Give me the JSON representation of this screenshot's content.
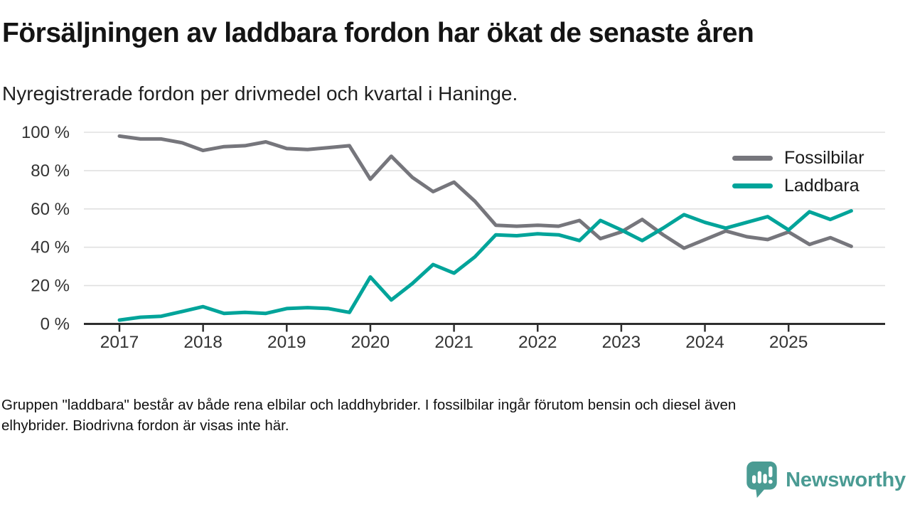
{
  "header": {
    "title": "Försäljningen av laddbara fordon har ökat de senaste åren",
    "subtitle": "Nyregistrerade fordon per drivmedel och kvartal i Haninge."
  },
  "chart_data": {
    "type": "line",
    "unit": "percent",
    "title": "Nyregistrerade fordon per drivmedel och kvartal i Haninge",
    "categories": [
      "2017 Q1",
      "2017 Q2",
      "2017 Q3",
      "2017 Q4",
      "2018 Q1",
      "2018 Q2",
      "2018 Q3",
      "2018 Q4",
      "2019 Q1",
      "2019 Q2",
      "2019 Q3",
      "2019 Q4",
      "2020 Q1",
      "2020 Q2",
      "2020 Q3",
      "2020 Q4",
      "2021 Q1",
      "2021 Q2",
      "2021 Q3",
      "2021 Q4",
      "2022 Q1",
      "2022 Q2",
      "2022 Q3",
      "2022 Q4",
      "2023 Q1",
      "2023 Q2",
      "2023 Q3",
      "2023 Q4",
      "2024 Q1",
      "2024 Q2",
      "2024 Q3",
      "2024 Q4",
      "2025 Q1",
      "2025 Q2",
      "2025 Q3",
      "2025 Q4"
    ],
    "series": [
      {
        "name": "Fossilbilar",
        "color": "#76767c",
        "values": [
          98,
          96.5,
          96.5,
          94.5,
          90.5,
          92.5,
          93,
          95,
          91.5,
          91,
          92,
          93,
          75.5,
          87.5,
          76.5,
          69,
          74,
          64,
          51.5,
          51,
          51.5,
          51,
          54,
          44.5,
          48,
          54.5,
          46.5,
          39.5,
          44,
          48.5,
          45.5,
          44,
          48,
          41.5,
          45,
          40.5
        ]
      },
      {
        "name": "Laddbara",
        "color": "#00a49a",
        "values": [
          2,
          3.5,
          4,
          6.5,
          9,
          5.5,
          6,
          5.5,
          8,
          8.5,
          8,
          6,
          24.5,
          12.5,
          21,
          31,
          26.5,
          35,
          46.5,
          46,
          47,
          46.5,
          43.5,
          54,
          49,
          43.5,
          50,
          57,
          53,
          50,
          53,
          56,
          49,
          58.5,
          54.5,
          59
        ]
      }
    ],
    "ylim": [
      0,
      100
    ],
    "yticks": [
      100,
      80,
      60,
      40,
      20,
      0
    ],
    "ytick_labels": [
      "100 %",
      "80 %",
      "60 %",
      "40 %",
      "20 %",
      "0 %"
    ],
    "xtick_years": [
      "2017",
      "2018",
      "2019",
      "2020",
      "2021",
      "2022",
      "2023",
      "2024",
      "2025"
    ],
    "grid": "horizontal",
    "legend_position": "top-right",
    "axis_color": "#2e2e2e",
    "gridline_color": "#e0e0e0",
    "tick_label_color": "#333333"
  },
  "footer": {
    "lines": [
      "Gruppen \"laddbara\" består av både rena elbilar och laddhybrider. I fossilbilar ingår förutom bensin och diesel även",
      "elhybrider. Biodrivna fordon är visas inte här."
    ]
  },
  "logo": {
    "text": "Newsworthy",
    "color": "#4a9b93"
  }
}
